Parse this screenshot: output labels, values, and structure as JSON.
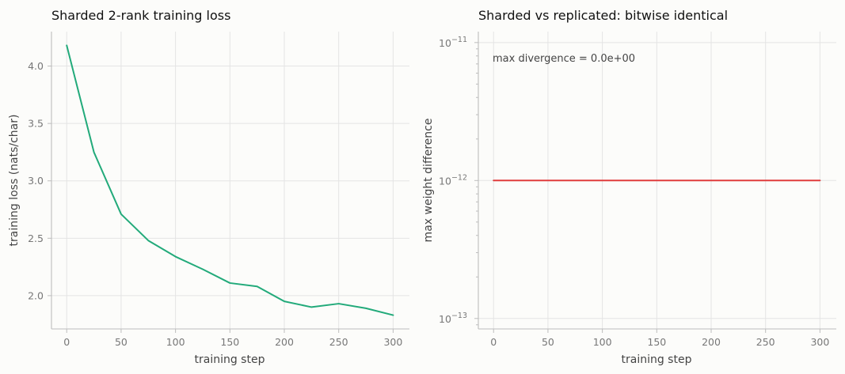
{
  "chart_data": [
    {
      "type": "line",
      "title": "Sharded 2-rank training loss",
      "xlabel": "training step",
      "ylabel": "training loss (nats/char)",
      "xlim": [
        -14,
        315
      ],
      "ylim": [
        1.71,
        4.3
      ],
      "xticks": [
        0,
        50,
        100,
        150,
        200,
        250,
        300
      ],
      "yticks": [
        2.0,
        2.5,
        3.0,
        3.5,
        4.0
      ],
      "ytick_labels": [
        "2.0",
        "2.5",
        "3.0",
        "3.5",
        "4.0"
      ],
      "grid": true,
      "legend": "none",
      "series": [
        {
          "color": "#22aa7a",
          "x": [
            0,
            25,
            50,
            75,
            100,
            125,
            150,
            175,
            200,
            225,
            250,
            275,
            300
          ],
          "y": [
            4.18,
            3.25,
            2.71,
            2.48,
            2.34,
            2.23,
            2.11,
            2.08,
            1.95,
            1.9,
            1.93,
            1.89,
            1.83
          ]
        }
      ]
    },
    {
      "type": "line",
      "title": "Sharded vs replicated: bitwise identical",
      "xlabel": "training step",
      "ylabel": "max weight difference",
      "xlim": [
        -14,
        315
      ],
      "yscale": "log",
      "ylim": [
        8.4e-14,
        1.2e-11
      ],
      "xticks": [
        0,
        50,
        100,
        150,
        200,
        250,
        300
      ],
      "yticks_major": [
        1e-13,
        1e-12,
        1e-11
      ],
      "ytick_labels": [
        {
          "base": "10",
          "exp": "−13"
        },
        {
          "base": "10",
          "exp": "−12"
        },
        {
          "base": "10",
          "exp": "−11"
        }
      ],
      "annotation": "max divergence = 0.0e+00",
      "grid": true,
      "legend": "none",
      "series": [
        {
          "color": "#e03c3c",
          "x": [
            0,
            300
          ],
          "y": [
            1e-12,
            1e-12
          ]
        }
      ]
    }
  ]
}
